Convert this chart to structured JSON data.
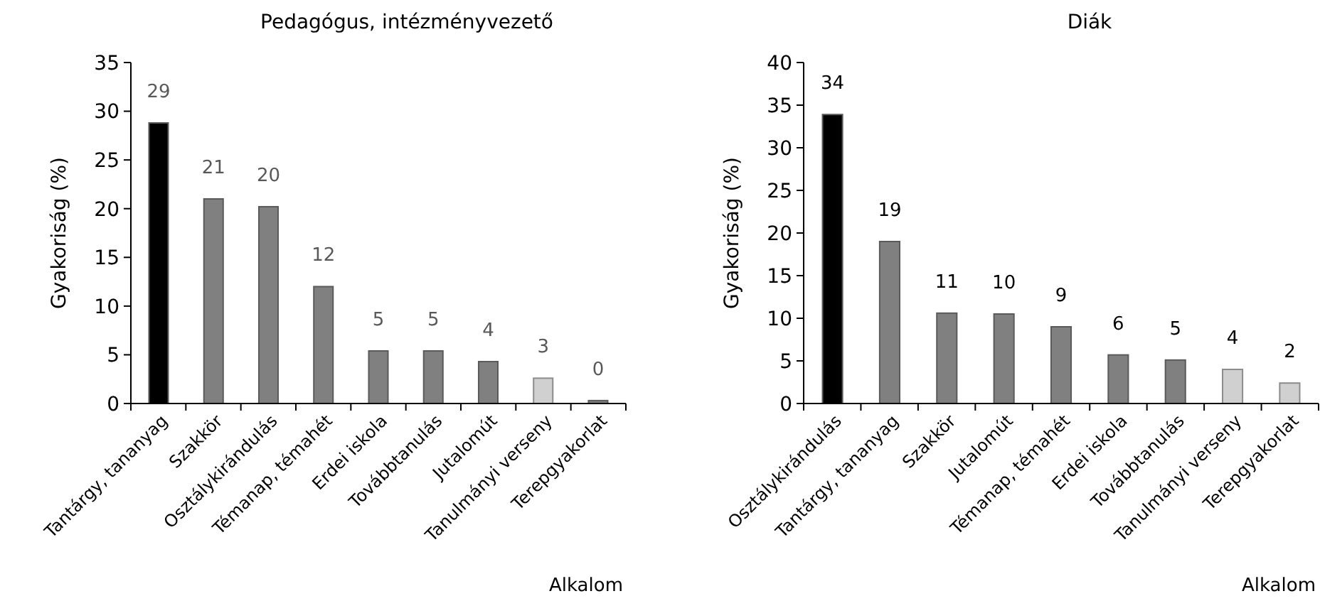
{
  "chart_data": [
    {
      "type": "bar",
      "title": "Pedagógus, intézményvezető",
      "xlabel": "Alkalom",
      "ylabel": "Gyakoriság (%)",
      "categories": [
        "Tantárgy, tananyag",
        "Szakkör",
        "Osztálykirándulás",
        "Témanap, témahét",
        "Erdei iskola",
        "Továbbtanulás",
        "Jutalomút",
        "Tanulmányi verseny",
        "Terepgyakorlat"
      ],
      "values": [
        28.8,
        21.0,
        20.2,
        12.0,
        5.4,
        5.4,
        4.3,
        2.6,
        0.3
      ],
      "value_labels": [
        "29",
        "21",
        "20",
        "12",
        "5",
        "5",
        "4",
        "3",
        "0"
      ],
      "colors": [
        "#000000",
        "#808080",
        "#808080",
        "#808080",
        "#808080",
        "#808080",
        "#808080",
        "#d0d0d0",
        "#808080"
      ],
      "ylim": [
        0,
        35
      ],
      "yticks": [
        0,
        5,
        10,
        15,
        20,
        25,
        30,
        35
      ],
      "grid": false
    },
    {
      "type": "bar",
      "title": "Diák",
      "xlabel": "Alkalom",
      "ylabel": "Gyakoriság (%)",
      "categories": [
        "Osztálykirándulás",
        "Tantárgy, tananyag",
        "Szakkör",
        "Jutalomút",
        "Témanap, témahét",
        "Erdei iskola",
        "Továbbtanulás",
        "Tanulmányi verseny",
        "Terepgyakorlat"
      ],
      "values": [
        33.9,
        19.0,
        10.6,
        10.5,
        9.0,
        5.7,
        5.1,
        4.0,
        2.4
      ],
      "value_labels": [
        "34",
        "19",
        "11",
        "10",
        "9",
        "6",
        "5",
        "4",
        "2"
      ],
      "colors": [
        "#000000",
        "#808080",
        "#808080",
        "#808080",
        "#808080",
        "#808080",
        "#808080",
        "#d0d0d0",
        "#d0d0d0"
      ],
      "ylim": [
        0,
        40
      ],
      "yticks": [
        0,
        5,
        10,
        15,
        20,
        25,
        30,
        35,
        40
      ],
      "grid": false
    }
  ]
}
